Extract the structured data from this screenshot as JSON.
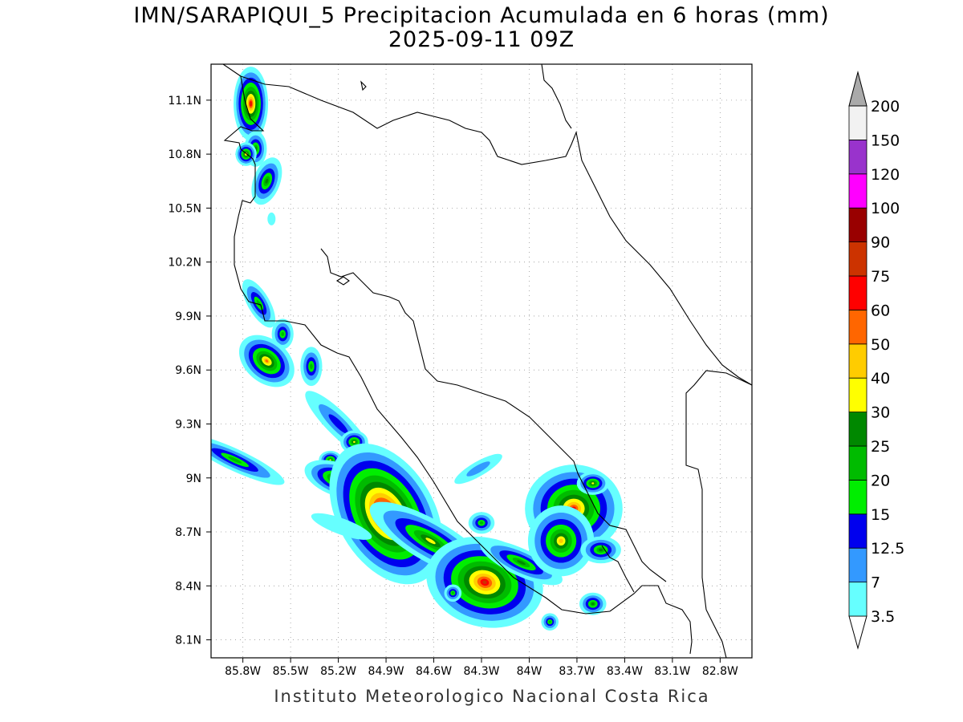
{
  "title_line1": "IMN/SARAPIQUI_5 Precipitacion Acumulada en 6 horas (mm)",
  "title_line2": "2025-09-11 09Z",
  "credit": "Instituto Meteorologico Nacional Costa Rica",
  "map": {
    "lon_range": [
      -86.0,
      -82.6
    ],
    "lat_range": [
      8.0,
      11.3
    ],
    "lon_ticks": [
      {
        "value": -85.8,
        "label": "85.8W"
      },
      {
        "value": -85.5,
        "label": "85.5W"
      },
      {
        "value": -85.2,
        "label": "85.2W"
      },
      {
        "value": -84.9,
        "label": "84.9W"
      },
      {
        "value": -84.6,
        "label": "84.6W"
      },
      {
        "value": -84.3,
        "label": "84.3W"
      },
      {
        "value": -84.0,
        "label": "84W"
      },
      {
        "value": -83.7,
        "label": "83.7W"
      },
      {
        "value": -83.4,
        "label": "83.4W"
      },
      {
        "value": -83.1,
        "label": "83.1W"
      },
      {
        "value": -82.8,
        "label": "82.8W"
      }
    ],
    "lat_ticks": [
      {
        "value": 8.1,
        "label": "8.1N"
      },
      {
        "value": 8.4,
        "label": "8.4N"
      },
      {
        "value": 8.7,
        "label": "8.7N"
      },
      {
        "value": 9.0,
        "label": "9N"
      },
      {
        "value": 9.3,
        "label": "9.3N"
      },
      {
        "value": 9.6,
        "label": "9.6N"
      },
      {
        "value": 9.9,
        "label": "9.9N"
      },
      {
        "value": 10.2,
        "label": "10.2N"
      },
      {
        "value": 10.5,
        "label": "10.5N"
      },
      {
        "value": 10.8,
        "label": "10.8N"
      },
      {
        "value": 11.1,
        "label": "11.1N"
      }
    ],
    "grid": "dotted"
  },
  "colorbar": {
    "levels": [
      "3.5",
      "7",
      "12.5",
      "15",
      "20",
      "25",
      "30",
      "40",
      "50",
      "60",
      "75",
      "90",
      "100",
      "120",
      "150",
      "200"
    ],
    "colors": [
      "#ffffff",
      "#66ffff",
      "#3399ff",
      "#0000ee",
      "#00ee00",
      "#00bb00",
      "#008800",
      "#ffff00",
      "#ffcc00",
      "#ff6600",
      "#ff0000",
      "#cc3300",
      "#990000",
      "#ff00ff",
      "#9933cc",
      "#f2f2f2",
      "#aaaaaa"
    ]
  },
  "precip_cells": [
    {
      "lon": -85.75,
      "lat": 11.08,
      "rx": 14,
      "ry": 30,
      "rot": 0,
      "level": 11
    },
    {
      "lon": -85.72,
      "lat": 10.83,
      "rx": 10,
      "ry": 16,
      "rot": 0,
      "level": 6
    },
    {
      "lon": -85.78,
      "lat": 10.8,
      "rx": 9,
      "ry": 10,
      "rot": 0,
      "level": 8
    },
    {
      "lon": -85.65,
      "lat": 10.65,
      "rx": 12,
      "ry": 22,
      "rot": 20,
      "level": 6
    },
    {
      "lon": -85.62,
      "lat": 10.44,
      "rx": 5,
      "ry": 8,
      "rot": 0,
      "level": 1
    },
    {
      "lon": -85.7,
      "lat": 9.97,
      "rx": 10,
      "ry": 25,
      "rot": -30,
      "level": 5
    },
    {
      "lon": -85.55,
      "lat": 9.8,
      "rx": 10,
      "ry": 14,
      "rot": 0,
      "level": 5
    },
    {
      "lon": -85.65,
      "lat": 9.65,
      "rx": 26,
      "ry": 18,
      "rot": 40,
      "level": 9
    },
    {
      "lon": -85.37,
      "lat": 9.62,
      "rx": 10,
      "ry": 18,
      "rot": 0,
      "level": 5
    },
    {
      "lon": -85.2,
      "lat": 9.3,
      "rx": 46,
      "ry": 12,
      "rot": 45,
      "level": 3
    },
    {
      "lon": -85.1,
      "lat": 9.2,
      "rx": 12,
      "ry": 10,
      "rot": 0,
      "level": 7
    },
    {
      "lon": -85.25,
      "lat": 9.1,
      "rx": 10,
      "ry": 8,
      "rot": 0,
      "level": 7
    },
    {
      "lon": -85.2,
      "lat": 8.99,
      "rx": 30,
      "ry": 14,
      "rot": 20,
      "level": 8
    },
    {
      "lon": -85.85,
      "lat": 9.1,
      "rx": 50,
      "ry": 10,
      "rot": 25,
      "level": 5
    },
    {
      "lon": -84.9,
      "lat": 8.8,
      "rx": 38,
      "ry": 60,
      "rot": -30,
      "level": 14
    },
    {
      "lon": -84.62,
      "lat": 8.65,
      "rx": 60,
      "ry": 18,
      "rot": 30,
      "level": 7
    },
    {
      "lon": -84.28,
      "lat": 8.42,
      "rx": 48,
      "ry": 36,
      "rot": 15,
      "level": 11
    },
    {
      "lon": -84.05,
      "lat": 8.53,
      "rx": 40,
      "ry": 12,
      "rot": 25,
      "level": 6
    },
    {
      "lon": -83.6,
      "lat": 8.3,
      "rx": 12,
      "ry": 10,
      "rot": 0,
      "level": 6
    },
    {
      "lon": -83.72,
      "lat": 8.83,
      "rx": 40,
      "ry": 36,
      "rot": 0,
      "level": 10
    },
    {
      "lon": -83.8,
      "lat": 8.65,
      "rx": 28,
      "ry": 30,
      "rot": 0,
      "level": 8
    },
    {
      "lon": -83.6,
      "lat": 8.97,
      "rx": 14,
      "ry": 10,
      "rot": 0,
      "level": 7
    },
    {
      "lon": -83.55,
      "lat": 8.6,
      "rx": 18,
      "ry": 12,
      "rot": 0,
      "level": 6
    },
    {
      "lon": -84.32,
      "lat": 9.05,
      "rx": 30,
      "ry": 8,
      "rot": -30,
      "level": 2
    },
    {
      "lon": -84.3,
      "lat": 8.75,
      "rx": 12,
      "ry": 10,
      "rot": 0,
      "level": 5
    },
    {
      "lon": -83.87,
      "lat": 8.2,
      "rx": 8,
      "ry": 8,
      "rot": 0,
      "level": 5
    },
    {
      "lon": -85.18,
      "lat": 8.73,
      "rx": 40,
      "ry": 10,
      "rot": 20,
      "level": 1
    },
    {
      "lon": -84.48,
      "lat": 8.36,
      "rx": 8,
      "ry": 8,
      "rot": 0,
      "level": 5
    }
  ]
}
